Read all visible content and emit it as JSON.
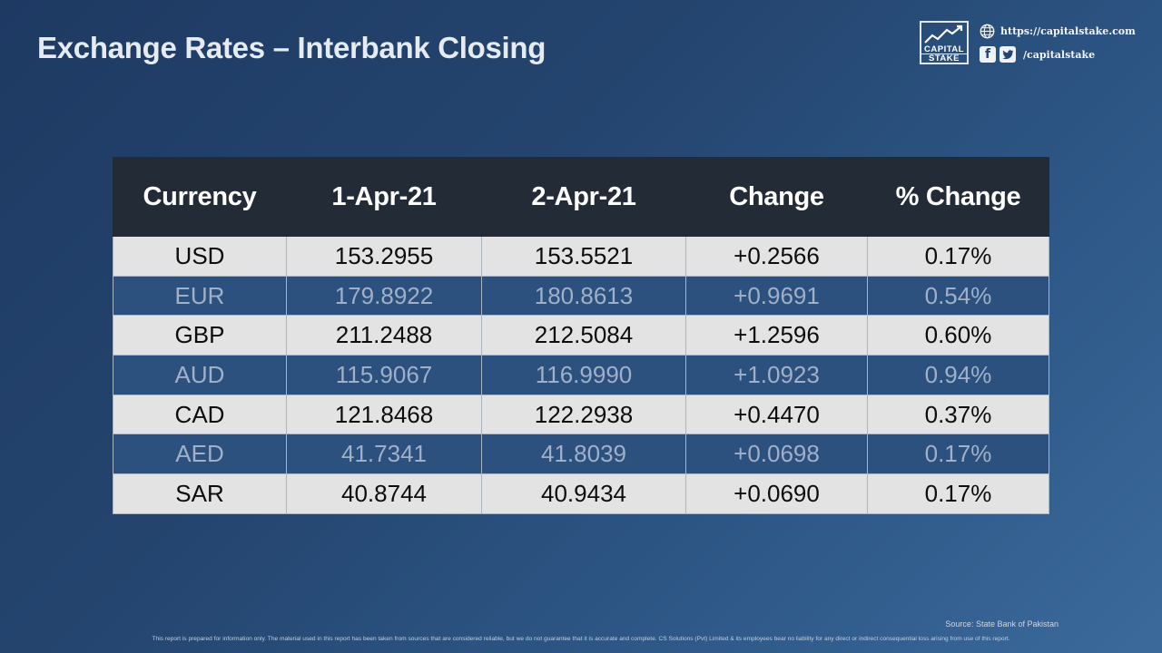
{
  "title": "Exchange Rates – Interbank Closing",
  "brand": {
    "logo_line1": "CAPITAL",
    "logo_line2": "STAKE",
    "website": "https://capitalstake.com",
    "social_handle": "/capitalstake",
    "icons": [
      "globe-icon",
      "facebook-icon",
      "twitter-icon"
    ]
  },
  "table": {
    "headers": [
      "Currency",
      "1-Apr-21",
      "2-Apr-21",
      "Change",
      "% Change"
    ],
    "rows": [
      [
        "USD",
        "153.2955",
        "153.5521",
        "+0.2566",
        "0.17%"
      ],
      [
        "EUR",
        "179.8922",
        "180.8613",
        "+0.9691",
        "0.54%"
      ],
      [
        "GBP",
        "211.2488",
        "212.5084",
        "+1.2596",
        "0.60%"
      ],
      [
        "AUD",
        "115.9067",
        "116.9990",
        "+1.0923",
        "0.94%"
      ],
      [
        "CAD",
        "121.8468",
        "122.2938",
        "+0.4470",
        "0.37%"
      ],
      [
        "AED",
        "41.7341",
        "41.8039",
        "+0.0698",
        "0.17%"
      ],
      [
        "SAR",
        "40.8744",
        "40.9434",
        "+0.0690",
        "0.17%"
      ]
    ]
  },
  "source": "Source: State Bank of Pakistan",
  "disclaimer": "This report is prepared for information only. The material used in this report has been taken from sources that are considered reliable, but we do not guarantee that it is accurate and complete. CS Solutions (Pvt) Limited & its employees bear no liability for any direct or indirect consequential loss arising from use of this report.",
  "colors": {
    "header_bg": "#222b36",
    "row_light": "#e3e3e3",
    "row_dark": "#2d517f",
    "background": "#24456f"
  }
}
